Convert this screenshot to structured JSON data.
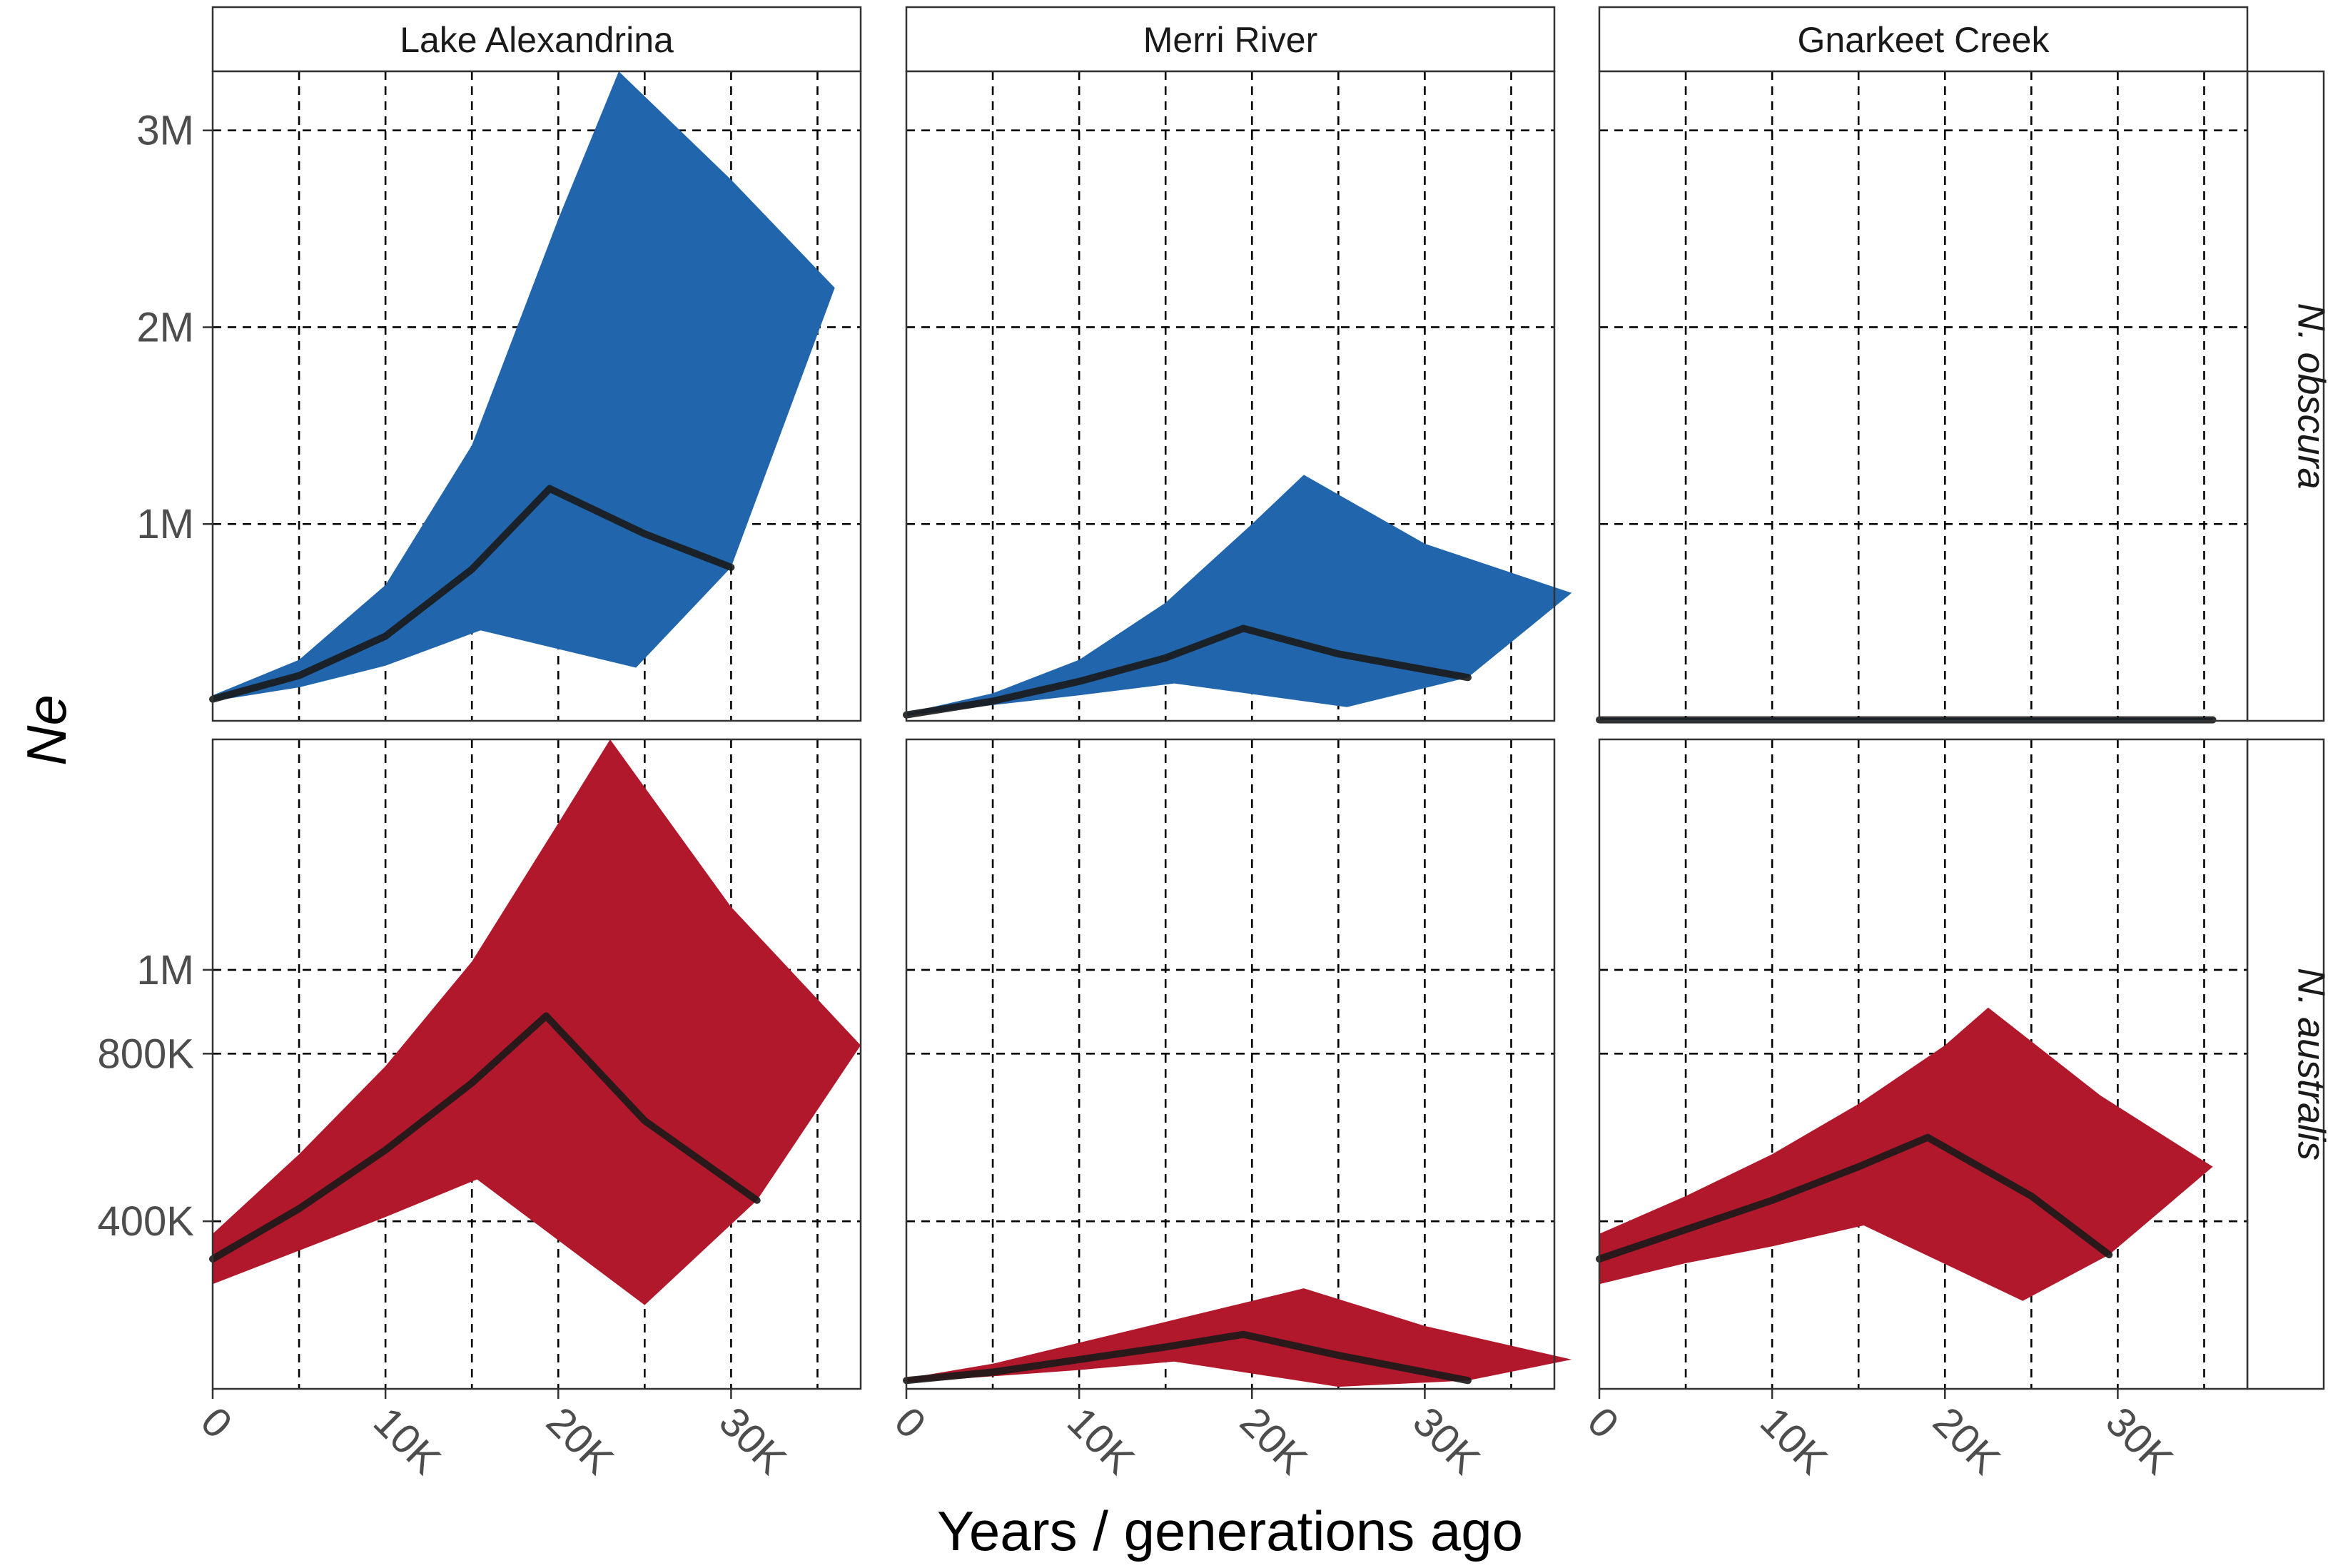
{
  "chart_data": {
    "type": "area",
    "xlabel": "Years / generations ago",
    "ylabel": "Ne",
    "columns": [
      "Lake Alexandrina",
      "Merri River",
      "Gnarkeet Creek"
    ],
    "rows": [
      "N. obscura",
      "N. australis"
    ],
    "x_ticks": [
      0,
      10000,
      20000,
      30000
    ],
    "x_tick_labels": [
      "0",
      "10K",
      "20K",
      "30K"
    ],
    "x_lim": [
      0,
      37500
    ],
    "grid": true,
    "colors": {
      "N. obscura": "#2166ac",
      "N. australis": "#b2182b",
      "median_line": "#1a1a1a"
    },
    "panels": [
      {
        "row": "N. obscura",
        "y_ticks": [
          1000000,
          2000000,
          3000000
        ],
        "y_tick_labels": [
          "1M",
          "2M",
          "3M"
        ],
        "y_lim": [
          0,
          3300000
        ],
        "series": [
          {
            "population": "Lake Alexandrina",
            "median": {
              "x": [
                0,
                5000,
                10000,
                15000,
                19500,
                25000,
                30000
              ],
              "y": [
                110000,
                230000,
                430000,
                770000,
                1180000,
                950000,
                780000
              ]
            },
            "lower": {
              "x": [
                0,
                5000,
                10000,
                15500,
                24500,
                30000
              ],
              "y": [
                100000,
                170000,
                280000,
                460000,
                270000,
                780000
              ]
            },
            "upper": {
              "x": [
                0,
                5000,
                10000,
                15000,
                20000,
                23500,
                30000,
                36000
              ],
              "y": [
                130000,
                310000,
                690000,
                1400000,
                2550000,
                3300000,
                2750000,
                2200000
              ]
            }
          },
          {
            "population": "Merri River",
            "median": {
              "x": [
                0,
                5000,
                10000,
                15000,
                19500,
                25000,
                32500
              ],
              "y": [
                30000,
                100000,
                200000,
                320000,
                470000,
                340000,
                220000
              ]
            },
            "lower": {
              "x": [
                0,
                5000,
                10000,
                15500,
                25500,
                32500
              ],
              "y": [
                25000,
                80000,
                130000,
                190000,
                70000,
                220000
              ]
            },
            "upper": {
              "x": [
                0,
                5000,
                10000,
                15000,
                20000,
                23000,
                30000,
                38500
              ],
              "y": [
                40000,
                140000,
                310000,
                600000,
                1000000,
                1250000,
                900000,
                650000
              ]
            }
          },
          {
            "population": "Gnarkeet Creek",
            "median": {
              "x": [
                0,
                35500
              ],
              "y": [
                5000,
                5000
              ]
            },
            "lower": {
              "x": [
                0,
                35500
              ],
              "y": [
                0,
                0
              ]
            },
            "upper": {
              "x": [
                0,
                35500
              ],
              "y": [
                15000,
                15000
              ]
            }
          }
        ]
      },
      {
        "row": "N. australis",
        "y_ticks": [
          400000,
          800000,
          1000000
        ],
        "y_tick_labels": [
          "400K",
          "800K",
          "1M"
        ],
        "y_lim": [
          0,
          1550000
        ],
        "series": [
          {
            "population": "Lake Alexandrina",
            "median": {
              "x": [
                0,
                5000,
                10000,
                15000,
                19300,
                25000,
                31500
              ],
              "y": [
                310000,
                430000,
                570000,
                730000,
                890000,
                640000,
                450000
              ]
            },
            "lower": {
              "x": [
                0,
                5000,
                10000,
                15300,
                25000,
                31500
              ],
              "y": [
                250000,
                330000,
                410000,
                500000,
                200000,
                450000
              ]
            },
            "upper": {
              "x": [
                0,
                5000,
                10000,
                15000,
                20000,
                23000,
                30000,
                37500
              ],
              "y": [
                370000,
                560000,
                770000,
                1020000,
                1350000,
                1550000,
                1150000,
                820000
              ]
            }
          },
          {
            "population": "Merri River",
            "median": {
              "x": [
                0,
                5000,
                10000,
                15000,
                19500,
                25000,
                32500
              ],
              "y": [
                20000,
                40000,
                70000,
                100000,
                130000,
                80000,
                20000
              ]
            },
            "lower": {
              "x": [
                0,
                5000,
                10000,
                15500,
                25000,
                32500
              ],
              "y": [
                15000,
                30000,
                45000,
                65000,
                5000,
                20000
              ]
            },
            "upper": {
              "x": [
                0,
                5000,
                10000,
                15000,
                20000,
                23000,
                30000,
                38500
              ],
              "y": [
                25000,
                60000,
                110000,
                160000,
                210000,
                240000,
                150000,
                70000
              ]
            }
          },
          {
            "population": "Gnarkeet Creek",
            "median": {
              "x": [
                0,
                5000,
                10000,
                15000,
                19000,
                25000,
                29500
              ],
              "y": [
                310000,
                380000,
                450000,
                530000,
                600000,
                460000,
                320000
              ]
            },
            "lower": {
              "x": [
                0,
                5000,
                10000,
                15300,
                24500,
                29500
              ],
              "y": [
                250000,
                300000,
                340000,
                390000,
                210000,
                320000
              ]
            },
            "upper": {
              "x": [
                0,
                5000,
                10000,
                15000,
                20000,
                22500,
                29000,
                35500
              ],
              "y": [
                370000,
                460000,
                560000,
                680000,
                820000,
                910000,
                700000,
                530000
              ]
            }
          }
        ]
      }
    ]
  }
}
